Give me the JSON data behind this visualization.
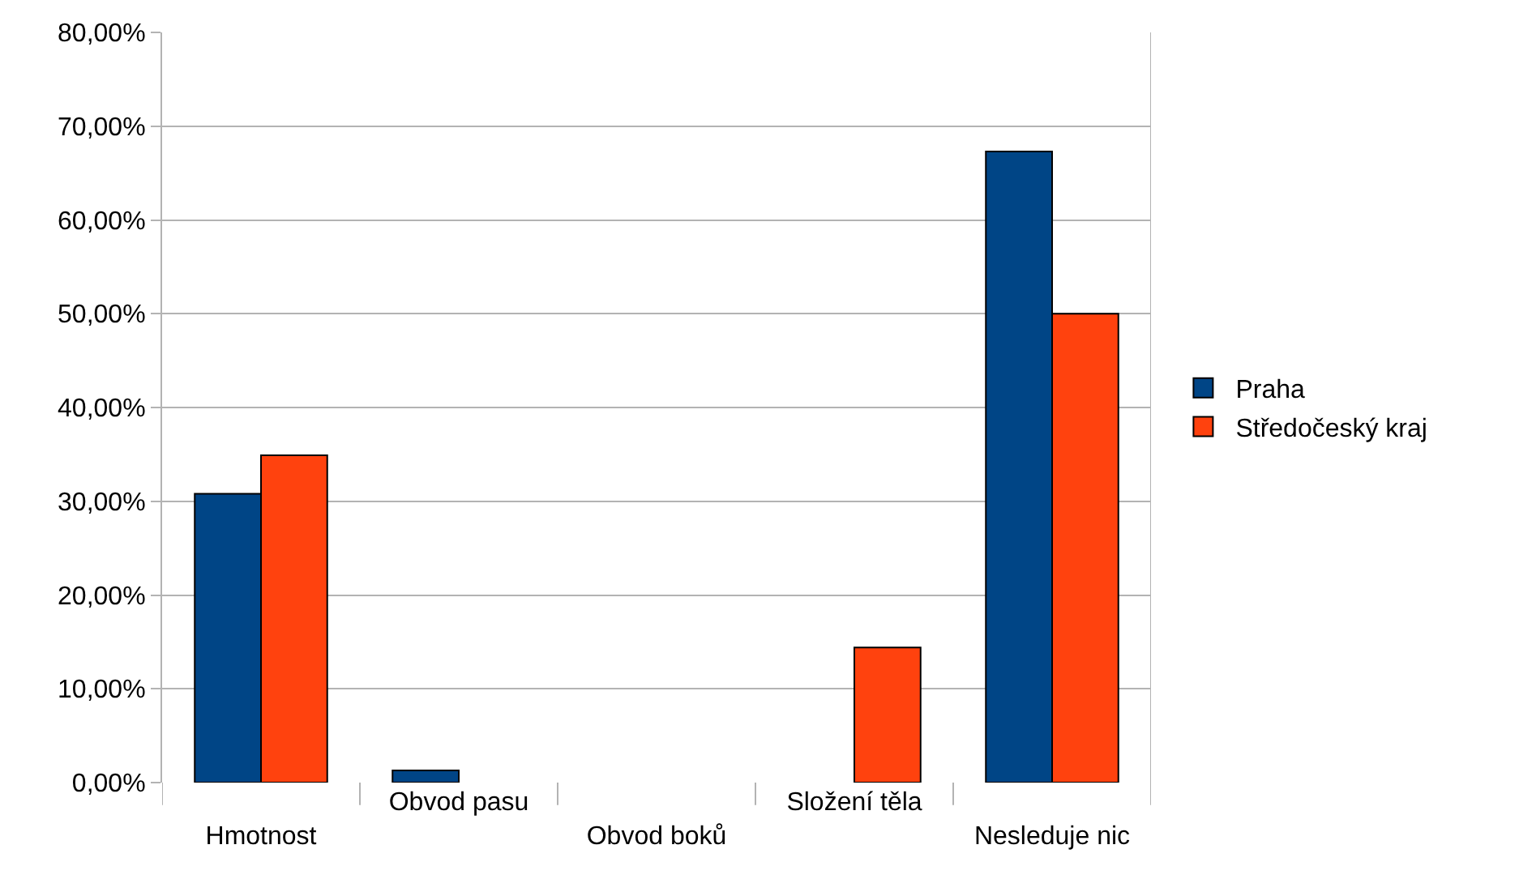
{
  "chart_data": {
    "type": "bar",
    "categories": [
      "Hmotnost",
      "Obvod pasu",
      "Obvod boků",
      "Složení těla",
      "Nesleduje nic"
    ],
    "series": [
      {
        "name": "Praha",
        "color": "#004586",
        "values": [
          30.8,
          1.3,
          null,
          null,
          67.3
        ]
      },
      {
        "name": "Středočeský kraj",
        "color": "#ff420e",
        "values": [
          34.9,
          null,
          null,
          14.4,
          50.0
        ]
      }
    ],
    "ylim": [
      0,
      80
    ],
    "yticks": [
      {
        "value": 0,
        "label": "0,00%"
      },
      {
        "value": 10,
        "label": "10,00%"
      },
      {
        "value": 20,
        "label": "20,00%"
      },
      {
        "value": 30,
        "label": "30,00%"
      },
      {
        "value": 40,
        "label": "40,00%"
      },
      {
        "value": 50,
        "label": "50,00%"
      },
      {
        "value": 60,
        "label": "60,00%"
      },
      {
        "value": 70,
        "label": "70,00%"
      },
      {
        "value": 80,
        "label": "80,00%"
      }
    ],
    "grid": "y",
    "legend": "right"
  }
}
